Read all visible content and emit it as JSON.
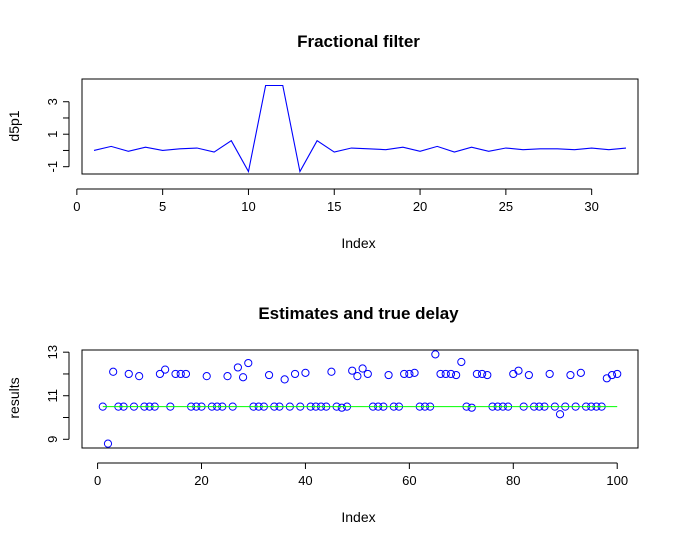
{
  "chart_data": [
    {
      "type": "line",
      "title": "Fractional filter",
      "xlabel": "Index",
      "ylabel": "d5p1",
      "xlim": [
        0.3,
        32.7
      ],
      "ylim": [
        -1.45,
        4.4
      ],
      "xticks": [
        0,
        5,
        10,
        15,
        20,
        25,
        30
      ],
      "yticks": [
        -1,
        1,
        3
      ],
      "series": [
        {
          "color": "#0000ff",
          "x": [
            1,
            2,
            3,
            4,
            5,
            6,
            7,
            8,
            9,
            10,
            11,
            12,
            13,
            14,
            15,
            16,
            17,
            18,
            19,
            20,
            21,
            22,
            23,
            24,
            25,
            26,
            27,
            28,
            29,
            30,
            31,
            32
          ],
          "values": [
            0.0,
            0.25,
            -0.05,
            0.2,
            0.0,
            0.1,
            0.15,
            -0.1,
            0.6,
            -1.3,
            4.0,
            4.0,
            -1.3,
            0.6,
            -0.1,
            0.15,
            0.1,
            0.05,
            0.2,
            -0.05,
            0.25,
            -0.1,
            0.2,
            -0.05,
            0.15,
            0.05,
            0.1,
            0.1,
            0.05,
            0.15,
            0.05,
            0.15
          ]
        }
      ]
    },
    {
      "type": "scatter",
      "title": "Estimates and true delay",
      "xlabel": "Index",
      "ylabel": "results",
      "xlim": [
        -3,
        104
      ],
      "ylim": [
        8.6,
        13.1
      ],
      "xticks": [
        0,
        20,
        40,
        60,
        80,
        100
      ],
      "yticks": [
        9,
        11,
        13
      ],
      "series": [
        {
          "color": "#0000ff",
          "marker": "open-circle",
          "x": [
            1,
            2,
            3,
            4,
            5,
            6,
            7,
            8,
            9,
            10,
            11,
            12,
            13,
            14,
            15,
            16,
            17,
            18,
            19,
            20,
            21,
            22,
            23,
            24,
            25,
            26,
            27,
            28,
            29,
            30,
            31,
            32,
            33,
            34,
            35,
            36,
            37,
            38,
            39,
            40,
            41,
            42,
            43,
            44,
            45,
            46,
            47,
            48,
            49,
            50,
            51,
            52,
            53,
            54,
            55,
            56,
            57,
            58,
            59,
            60,
            61,
            62,
            63,
            64,
            65,
            66,
            67,
            68,
            69,
            70,
            71,
            72,
            73,
            74,
            75,
            76,
            77,
            78,
            79,
            80,
            81,
            82,
            83,
            84,
            85,
            86,
            87,
            88,
            89,
            90,
            91,
            92,
            93,
            94,
            95,
            96,
            97,
            98,
            99,
            100
          ],
          "values": [
            10.5,
            8.8,
            12.1,
            10.5,
            10.5,
            12.0,
            10.5,
            11.9,
            10.5,
            10.5,
            10.5,
            12.0,
            12.2,
            10.5,
            12.0,
            12.0,
            12.0,
            10.5,
            10.5,
            10.5,
            11.9,
            10.5,
            10.5,
            10.5,
            11.9,
            10.5,
            12.3,
            11.85,
            12.5,
            10.5,
            10.5,
            10.5,
            11.95,
            10.5,
            10.5,
            11.75,
            10.5,
            12.0,
            10.5,
            12.05,
            10.5,
            10.5,
            10.5,
            10.5,
            12.1,
            10.5,
            10.45,
            10.5,
            12.15,
            11.9,
            12.25,
            12.0,
            10.5,
            10.5,
            10.5,
            11.95,
            10.5,
            10.5,
            12.0,
            12.0,
            12.05,
            10.5,
            10.5,
            10.5,
            12.9,
            12.0,
            12.0,
            12.0,
            11.95,
            12.55,
            10.5,
            10.45,
            12.0,
            12.0,
            11.95,
            10.5,
            10.5,
            10.5,
            10.5,
            12.0,
            12.15,
            10.5,
            11.95,
            10.5,
            10.5,
            10.5,
            12.0,
            10.5,
            10.15,
            10.5,
            11.95,
            10.5,
            12.05,
            10.5,
            10.5,
            10.5,
            10.5,
            11.8,
            11.95,
            12.0
          ]
        },
        {
          "color": "#00ff00",
          "type": "line",
          "x": [
            1,
            100
          ],
          "values": [
            10.5,
            10.5
          ]
        }
      ]
    }
  ]
}
